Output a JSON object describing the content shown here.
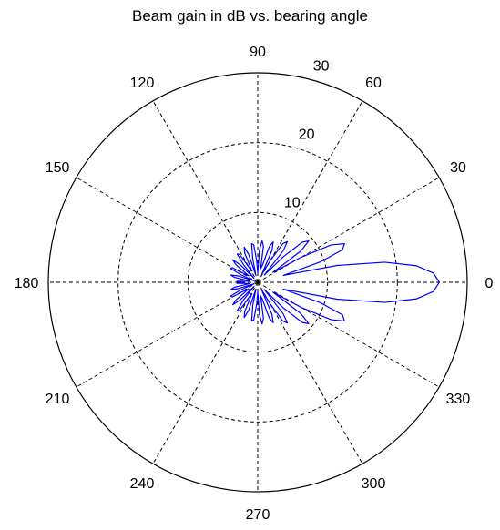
{
  "chart_data": {
    "type": "polar",
    "title": "Beam gain in dB vs. bearing angle",
    "angle_unit": "degrees",
    "angle_ticks": [
      0,
      30,
      60,
      90,
      120,
      150,
      180,
      210,
      240,
      270,
      300,
      330
    ],
    "radial_ticks": [
      10,
      20,
      30
    ],
    "rlim": [
      0,
      30
    ],
    "grid": true,
    "legend": false,
    "colors": {
      "series": "#0000ff",
      "axes": "#000000",
      "grid": "#000000"
    },
    "series": [
      {
        "theta": [
          0,
          3,
          6,
          9,
          12,
          15,
          18,
          21,
          24,
          27,
          30,
          33,
          36,
          39,
          42,
          45,
          48,
          51,
          54,
          57,
          60,
          63,
          66,
          69,
          72,
          75,
          78,
          81,
          84,
          87,
          90,
          93,
          96,
          99,
          102,
          105,
          108,
          111,
          114,
          117,
          120,
          123,
          126,
          129,
          132,
          135,
          138,
          141,
          144,
          147,
          150,
          153,
          156,
          159,
          162,
          165,
          168,
          171,
          174,
          177,
          180,
          183,
          186,
          189,
          192,
          195,
          198,
          201,
          204,
          207,
          210,
          213,
          216,
          219,
          222,
          225,
          228,
          231,
          234,
          237,
          240,
          243,
          246,
          249,
          252,
          255,
          258,
          261,
          264,
          267,
          270,
          273,
          276,
          279,
          282,
          285,
          288,
          291,
          294,
          297,
          300,
          303,
          306,
          309,
          312,
          315,
          318,
          321,
          324,
          327,
          330,
          333,
          336,
          339,
          342,
          345,
          348,
          351,
          354,
          357,
          360
        ],
        "r": [
          26.0,
          25.2,
          22.8,
          18.4,
          11.6,
          3.8,
          9.4,
          13.0,
          13.6,
          11.8,
          7.2,
          2.6,
          7.6,
          9.4,
          8.6,
          5.2,
          1.4,
          5.8,
          7.2,
          6.6,
          3.6,
          1.2,
          5.0,
          6.2,
          5.4,
          2.4,
          2.0,
          5.2,
          6.0,
          4.6,
          1.4,
          3.2,
          5.4,
          5.6,
          3.4,
          1.0,
          4.2,
          5.4,
          4.6,
          1.8,
          2.4,
          4.8,
          5.0,
          3.2,
          0.8,
          3.6,
          4.8,
          4.0,
          1.6,
          2.0,
          4.2,
          4.4,
          2.6,
          0.6,
          3.0,
          4.0,
          3.4,
          1.2,
          1.6,
          3.0,
          2.4,
          3.0,
          1.6,
          1.2,
          3.4,
          4.0,
          3.0,
          0.6,
          2.6,
          4.4,
          4.2,
          2.0,
          1.6,
          4.0,
          4.8,
          3.6,
          0.8,
          3.2,
          5.0,
          4.8,
          2.4,
          1.8,
          4.6,
          5.4,
          4.2,
          1.0,
          3.4,
          5.6,
          5.4,
          3.2,
          1.4,
          4.6,
          6.0,
          5.2,
          2.0,
          2.4,
          5.4,
          6.2,
          5.0,
          1.2,
          3.6,
          6.6,
          7.2,
          5.8,
          1.4,
          5.2,
          8.6,
          9.4,
          7.6,
          2.6,
          7.2,
          11.8,
          13.6,
          13.0,
          9.4,
          3.8,
          11.6,
          18.4,
          22.8,
          25.2,
          26.0
        ]
      }
    ]
  }
}
